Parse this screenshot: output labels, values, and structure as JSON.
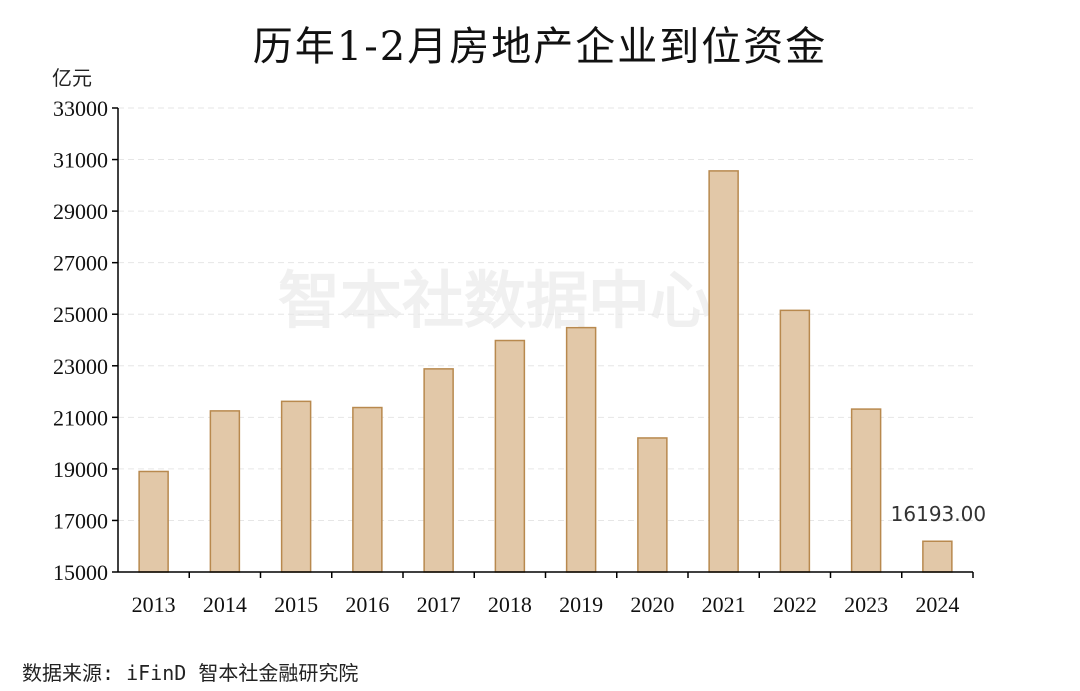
{
  "chart_data": {
    "type": "bar",
    "title": "历年1-2月房地产企业到位资金",
    "ylabel": "亿元",
    "xlabel": "",
    "categories": [
      "2013",
      "2014",
      "2015",
      "2016",
      "2017",
      "2018",
      "2019",
      "2020",
      "2021",
      "2022",
      "2023",
      "2024"
    ],
    "series": [
      {
        "values": [
          18900,
          21250,
          21620,
          21380,
          22880,
          23980,
          24480,
          20200,
          30560,
          25150,
          21320,
          16193
        ]
      }
    ],
    "ylim": [
      15000,
      33000
    ],
    "yticks": [
      "15000",
      "17000",
      "19000",
      "21000",
      "23000",
      "25000",
      "27000",
      "29000",
      "31000",
      "33000"
    ],
    "data_labels": [
      {
        "index": 11,
        "text": "16193.00"
      }
    ],
    "grid": true,
    "legend": "none",
    "bar_color": "#e2c8a8",
    "bar_edge_color": "#b8894e"
  },
  "watermark": "智本社数据中心",
  "source_note": "数据来源: iFinD 智本社金融研究院"
}
